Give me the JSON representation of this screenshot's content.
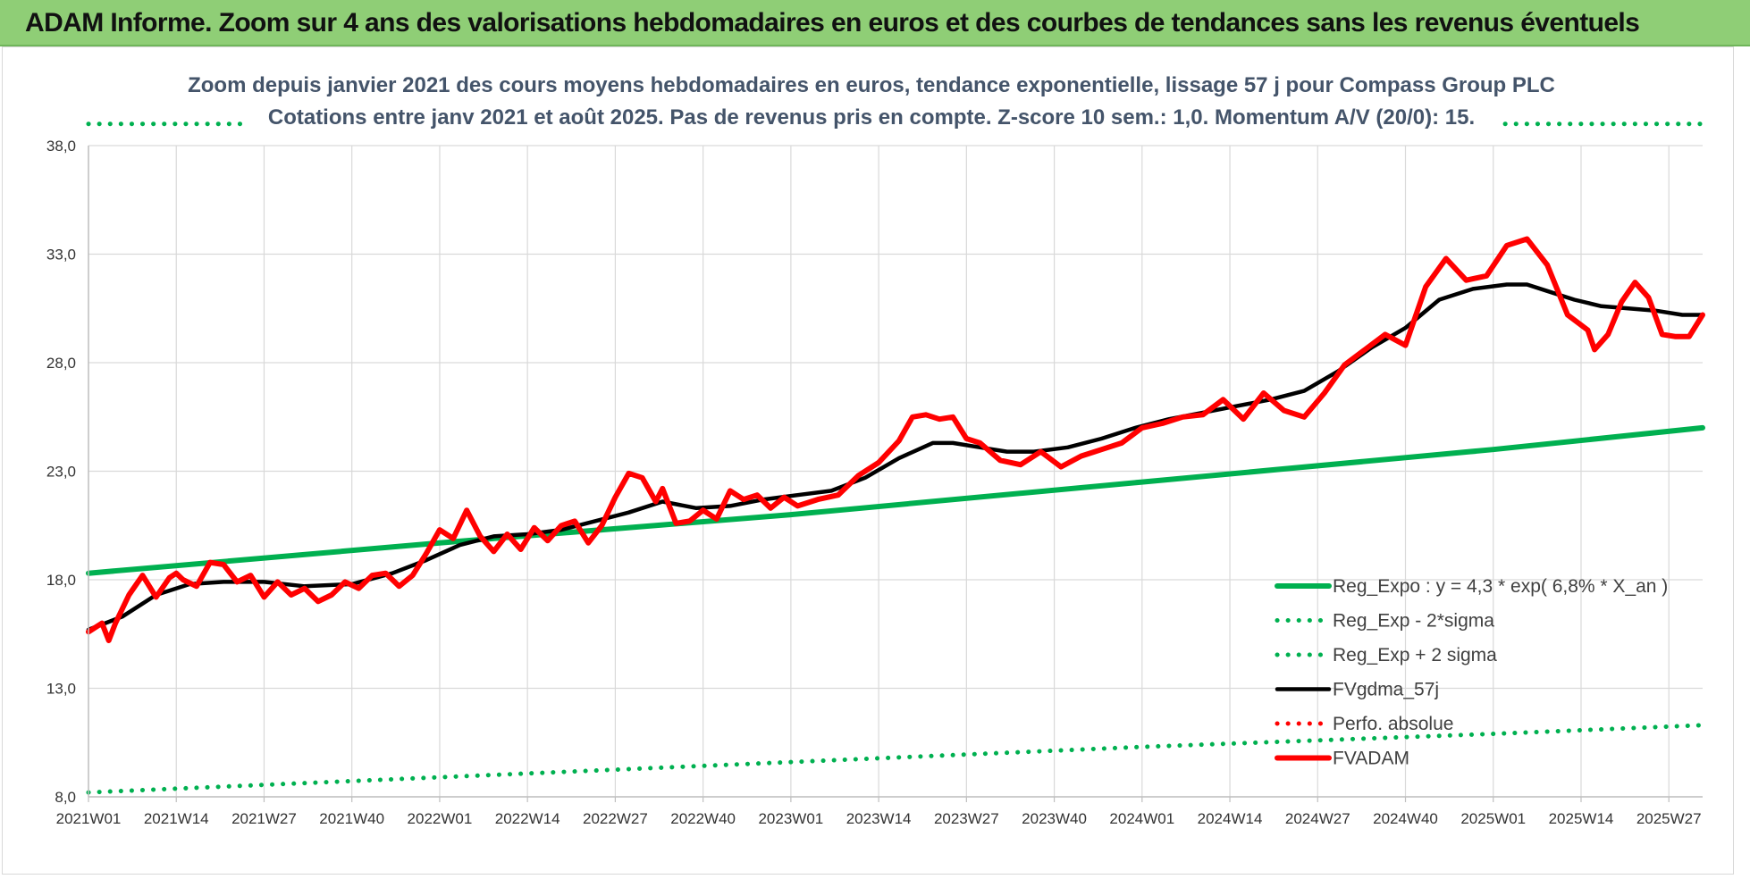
{
  "banner": {
    "title": "ADAM Informe. Zoom sur 4 ans des valorisations hebdomadaires en euros et des courbes de tendances sans les revenus éventuels"
  },
  "chart_data": {
    "type": "line",
    "title": "Zoom depuis janvier 2021 des cours moyens hebdomadaires en euros, tendance exponentielle, lissage 57 j pour Compass Group PLC",
    "subtitle": "Cotations entre janv 2021 et août 2025.  Pas de revenus pris en compte. Z-score 10 sem.: 1,0. Momentum A/V (20/0): 15.",
    "xlabel": "",
    "ylabel": "",
    "ylim": [
      8.0,
      38.0
    ],
    "y_ticks": [
      "8,0",
      "13,0",
      "18,0",
      "23,0",
      "28,0",
      "33,0",
      "38,0"
    ],
    "y_tick_values": [
      8,
      13,
      18,
      23,
      28,
      33,
      38
    ],
    "x_ticks": [
      "2021W01",
      "2021W14",
      "2021W27",
      "2021W40",
      "2022W01",
      "2022W14",
      "2022W27",
      "2022W40",
      "2023W01",
      "2023W14",
      "2023W27",
      "2023W40",
      "2024W01",
      "2024W14",
      "2024W27",
      "2024W40",
      "2025W01",
      "2025W14",
      "2025W27"
    ],
    "x_tick_index": [
      0,
      13,
      26,
      39,
      52,
      65,
      78,
      91,
      104,
      117,
      130,
      143,
      156,
      169,
      182,
      195,
      208,
      221,
      234
    ],
    "x_range": [
      0,
      239
    ],
    "grid": true,
    "legend_position": "bottom-right",
    "series": [
      {
        "name": "Reg_Expo : y = 4,3 * exp( 6,8% *  X_an )",
        "color": "#00b050",
        "style": "solid",
        "x": [
          0,
          52,
          104,
          156,
          208,
          239
        ],
        "y": [
          18.3,
          19.7,
          21.0,
          22.5,
          24.0,
          25.0
        ]
      },
      {
        "name": "Reg_Exp - 2*sigma",
        "color": "#00b050",
        "style": "dotted",
        "x": [
          0,
          52,
          104,
          156,
          208,
          239
        ],
        "y": [
          8.2,
          8.9,
          9.6,
          10.3,
          10.9,
          11.3
        ]
      },
      {
        "name": "Reg_Exp + 2 sigma",
        "color": "#00b050",
        "style": "dotted",
        "x": [
          0,
          239
        ],
        "y": [
          39.0,
          39.0
        ]
      },
      {
        "name": "FVgdma_57j",
        "color": "#000000",
        "style": "solid",
        "x": [
          0,
          5,
          10,
          15,
          20,
          26,
          32,
          39,
          45,
          50,
          55,
          60,
          65,
          70,
          75,
          80,
          85,
          90,
          95,
          100,
          105,
          110,
          115,
          120,
          125,
          128,
          132,
          136,
          140,
          145,
          150,
          155,
          160,
          165,
          170,
          175,
          180,
          185,
          190,
          195,
          200,
          205,
          210,
          213,
          216,
          220,
          224,
          228,
          232,
          236,
          239
        ],
        "y": [
          15.7,
          16.3,
          17.3,
          17.8,
          17.9,
          17.9,
          17.7,
          17.8,
          18.3,
          18.9,
          19.6,
          20.0,
          20.1,
          20.3,
          20.7,
          21.1,
          21.6,
          21.3,
          21.4,
          21.7,
          21.9,
          22.1,
          22.7,
          23.6,
          24.3,
          24.3,
          24.1,
          23.9,
          23.9,
          24.1,
          24.5,
          25.0,
          25.4,
          25.7,
          26.0,
          26.3,
          26.7,
          27.6,
          28.7,
          29.6,
          30.9,
          31.4,
          31.6,
          31.6,
          31.3,
          30.9,
          30.6,
          30.5,
          30.4,
          30.2,
          30.2
        ]
      },
      {
        "name": "Perfo. absolue",
        "color": "#ff0000",
        "style": "dotted",
        "x": [],
        "y": []
      },
      {
        "name": "FVADAM",
        "color": "#ff0000",
        "style": "solid",
        "x": [
          0,
          2,
          3,
          4,
          6,
          8,
          10,
          12,
          13,
          14,
          16,
          18,
          20,
          22,
          24,
          26,
          28,
          30,
          32,
          34,
          36,
          38,
          40,
          42,
          44,
          46,
          48,
          50,
          52,
          54,
          56,
          58,
          60,
          62,
          64,
          66,
          68,
          70,
          72,
          74,
          76,
          78,
          80,
          82,
          84,
          85,
          87,
          89,
          91,
          93,
          95,
          97,
          99,
          101,
          103,
          105,
          108,
          111,
          114,
          117,
          120,
          122,
          124,
          126,
          128,
          130,
          132,
          135,
          138,
          141,
          144,
          147,
          150,
          153,
          156,
          159,
          162,
          165,
          168,
          171,
          174,
          177,
          180,
          183,
          186,
          189,
          192,
          195,
          198,
          201,
          204,
          207,
          210,
          213,
          216,
          219,
          222,
          223,
          225,
          227,
          229,
          231,
          233,
          235,
          237,
          239
        ],
        "y": [
          15.6,
          16.0,
          15.2,
          16.0,
          17.3,
          18.2,
          17.2,
          18.1,
          18.3,
          18.0,
          17.7,
          18.8,
          18.7,
          17.9,
          18.2,
          17.2,
          17.9,
          17.3,
          17.6,
          17.0,
          17.3,
          17.9,
          17.6,
          18.2,
          18.3,
          17.7,
          18.2,
          19.2,
          20.3,
          19.9,
          21.2,
          20.0,
          19.3,
          20.1,
          19.4,
          20.4,
          19.8,
          20.5,
          20.7,
          19.7,
          20.5,
          21.8,
          22.9,
          22.7,
          21.6,
          22.2,
          20.6,
          20.7,
          21.2,
          20.8,
          22.1,
          21.7,
          21.9,
          21.3,
          21.8,
          21.4,
          21.7,
          21.9,
          22.8,
          23.4,
          24.4,
          25.5,
          25.6,
          25.4,
          25.5,
          24.5,
          24.3,
          23.5,
          23.3,
          23.9,
          23.2,
          23.7,
          24.0,
          24.3,
          25.0,
          25.2,
          25.5,
          25.6,
          26.3,
          25.4,
          26.6,
          25.8,
          25.5,
          26.6,
          27.9,
          28.6,
          29.3,
          28.8,
          31.5,
          32.8,
          31.8,
          32.0,
          33.4,
          33.7,
          32.5,
          30.2,
          29.5,
          28.6,
          29.3,
          30.8,
          31.7,
          31.0,
          29.3,
          29.2,
          29.2,
          30.2
        ]
      }
    ]
  }
}
